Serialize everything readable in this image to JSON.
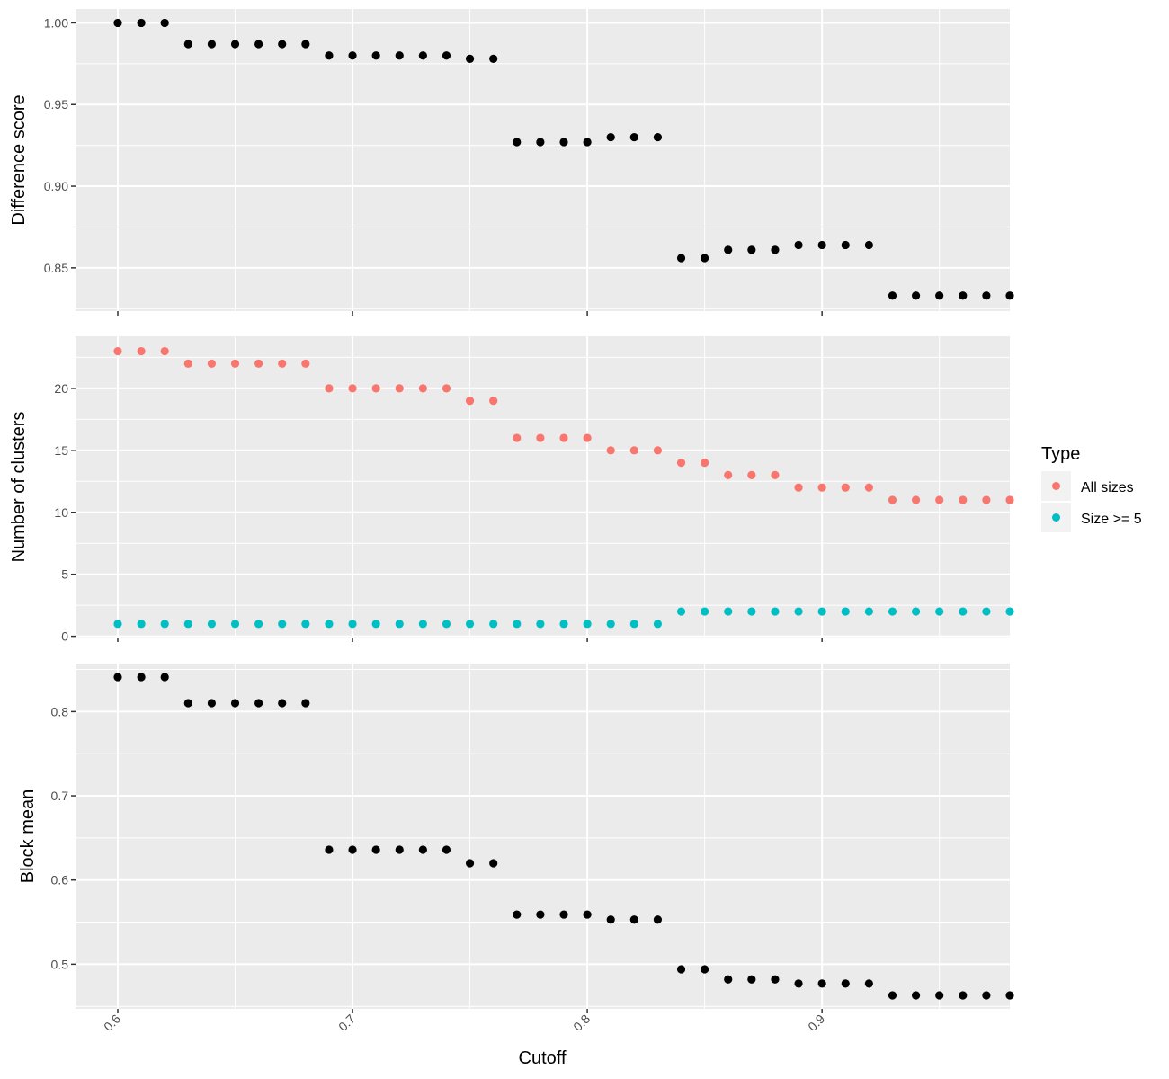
{
  "chart_data": {
    "type": "scatter",
    "x_label": "Cutoff",
    "x_ticks": [
      "0.6",
      "0.7",
      "0.8",
      "0.9"
    ],
    "x_tick_values": [
      0.6,
      0.7,
      0.8,
      0.9
    ],
    "x_range": [
      0.582,
      0.98
    ],
    "x": [
      0.6,
      0.61,
      0.62,
      0.63,
      0.64,
      0.65,
      0.66,
      0.67,
      0.68,
      0.69,
      0.7,
      0.71,
      0.72,
      0.73,
      0.74,
      0.75,
      0.76,
      0.77,
      0.78,
      0.79,
      0.8,
      0.81,
      0.82,
      0.83,
      0.84,
      0.85,
      0.86,
      0.87,
      0.88,
      0.89,
      0.9,
      0.91,
      0.92,
      0.93,
      0.94,
      0.95,
      0.96,
      0.97,
      0.98
    ],
    "panels": [
      {
        "ylabel": "Difference score",
        "yticks": [
          0.85,
          0.9,
          0.95,
          1.0
        ],
        "ytick_labels": [
          "0.85",
          "0.90",
          "0.95",
          "1.00"
        ],
        "ylim": [
          0.8235,
          1.0085
        ],
        "series": [
          {
            "color": "#000000",
            "values": [
              1.0,
              1.0,
              1.0,
              0.987,
              0.987,
              0.987,
              0.987,
              0.987,
              0.987,
              0.98,
              0.98,
              0.98,
              0.98,
              0.98,
              0.98,
              0.978,
              0.978,
              0.927,
              0.927,
              0.927,
              0.927,
              0.93,
              0.93,
              0.93,
              0.856,
              0.856,
              0.861,
              0.861,
              0.861,
              0.864,
              0.864,
              0.864,
              0.864,
              0.833,
              0.833,
              0.833,
              0.833,
              0.833,
              0.833
            ]
          }
        ]
      },
      {
        "ylabel": "Number of clusters",
        "yticks": [
          0,
          5,
          10,
          15,
          20
        ],
        "ytick_labels": [
          "0",
          "5",
          "10",
          "15",
          "20"
        ],
        "ylim": [
          -0.1,
          24.2
        ],
        "series": [
          {
            "name": "All sizes",
            "color": "#F8766D",
            "values": [
              23,
              23,
              23,
              22,
              22,
              22,
              22,
              22,
              22,
              20,
              20,
              20,
              20,
              20,
              20,
              19,
              19,
              16,
              16,
              16,
              16,
              15,
              15,
              15,
              14,
              14,
              13,
              13,
              13,
              12,
              12,
              12,
              12,
              11,
              11,
              11,
              11,
              11,
              11
            ]
          },
          {
            "name": "Size >= 5",
            "color": "#00BFC4",
            "values": [
              1,
              1,
              1,
              1,
              1,
              1,
              1,
              1,
              1,
              1,
              1,
              1,
              1,
              1,
              1,
              1,
              1,
              1,
              1,
              1,
              1,
              1,
              1,
              1,
              2,
              2,
              2,
              2,
              2,
              2,
              2,
              2,
              2,
              2,
              2,
              2,
              2,
              2,
              2
            ]
          }
        ]
      },
      {
        "ylabel": "Block mean",
        "yticks": [
          0.5,
          0.6,
          0.7,
          0.8
        ],
        "ytick_labels": [
          "0.5",
          "0.6",
          "0.7",
          "0.8"
        ],
        "ylim": [
          0.447,
          0.857
        ],
        "series": [
          {
            "color": "#000000",
            "values": [
              0.841,
              0.841,
              0.841,
              0.81,
              0.81,
              0.81,
              0.81,
              0.81,
              0.81,
              0.636,
              0.636,
              0.636,
              0.636,
              0.636,
              0.636,
              0.62,
              0.62,
              0.559,
              0.559,
              0.559,
              0.559,
              0.553,
              0.553,
              0.553,
              0.494,
              0.494,
              0.482,
              0.482,
              0.482,
              0.477,
              0.477,
              0.477,
              0.477,
              0.463,
              0.463,
              0.463,
              0.463,
              0.463,
              0.463
            ]
          }
        ]
      }
    ],
    "legend": {
      "title": "Type",
      "position": "right",
      "entries": [
        {
          "label": "All sizes",
          "color": "#F8766D"
        },
        {
          "label": "Size >= 5",
          "color": "#00BFC4"
        }
      ]
    },
    "grid": true,
    "panel_background": "#EBEBEB"
  }
}
